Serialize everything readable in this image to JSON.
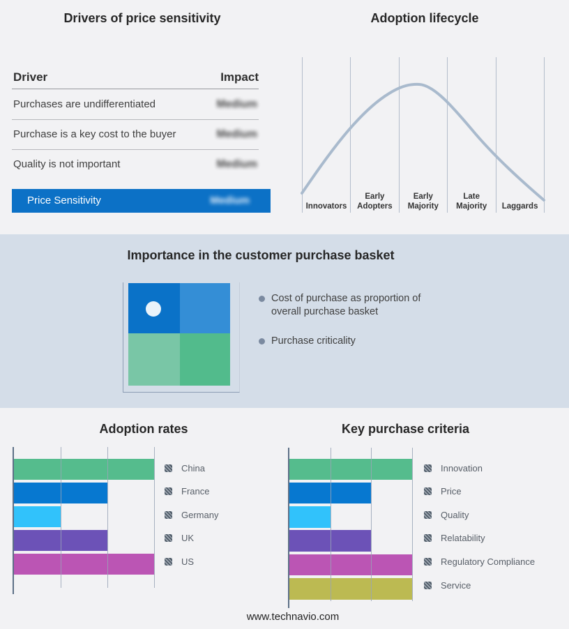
{
  "site": {
    "footer": "www.technavio.com"
  },
  "colors": {
    "page_bg": "#f2f2f4",
    "band_bg": "#d4dde8",
    "highlight_blue": "#0c71c6",
    "curve": "#a9bacd",
    "gridline": "#99a5b6",
    "axis": "#5d7086"
  },
  "basket_panel": {
    "title": "Importance in the customer purchase basket",
    "bullets": [
      "Cost of purchase as proportion of overall purchase basket",
      "Purchase criticality"
    ],
    "quadrant": {
      "top_left": "#0a72c8",
      "top_right": "#348ed6",
      "bottom_left": "#79c6a6",
      "bottom_right": "#52bb8c",
      "dot": "#eaf3fa"
    }
  },
  "chart_data": [
    {
      "type": "table",
      "title": "Drivers of price sensitivity",
      "columns": [
        "Driver",
        "Impact"
      ],
      "rows": [
        [
          "Purchases are undifferentiated",
          "Medium"
        ],
        [
          "Purchase is a key cost to the buyer",
          "Medium"
        ],
        [
          "Quality is not important",
          "Medium"
        ],
        [
          "Price Sensitivity",
          "Medium"
        ]
      ],
      "highlight_row_index": 3,
      "note": "Impact values appear blurred in source image"
    },
    {
      "type": "line",
      "title": "Adoption lifecycle",
      "categories": [
        "Innovators",
        "Early Adopters",
        "Early Majority",
        "Late Majority",
        "Laggards"
      ],
      "values_relative_height": [
        0.35,
        0.72,
        1.0,
        0.78,
        0.3
      ],
      "style": "smooth bell curve peaking at Early Majority, vertical stage separators, no numeric axes"
    },
    {
      "type": "bar",
      "title": "Adoption rates",
      "orientation": "horizontal",
      "categories": [
        "China",
        "France",
        "Germany",
        "UK",
        "US"
      ],
      "values": [
        3,
        2,
        1,
        2,
        3
      ],
      "colors": [
        "#55bc8d",
        "#0778d0",
        "#31c2fb",
        "#6c52b7",
        "#bb55b4"
      ],
      "xlim": [
        0,
        3
      ],
      "gridline_values": [
        1,
        2,
        3
      ],
      "legend_position": "right"
    },
    {
      "type": "bar",
      "title": "Key purchase criteria",
      "orientation": "horizontal",
      "categories": [
        "Innovation",
        "Price",
        "Quality",
        "Relatability",
        "Regulatory Compliance",
        "Service"
      ],
      "values": [
        3,
        2,
        1,
        2,
        3,
        3
      ],
      "colors": [
        "#55bc8d",
        "#0778d0",
        "#31c2fb",
        "#6c52b7",
        "#bb55b4",
        "#bcba52"
      ],
      "xlim": [
        0,
        3
      ],
      "gridline_values": [
        1,
        2,
        3
      ],
      "legend_position": "right"
    }
  ]
}
